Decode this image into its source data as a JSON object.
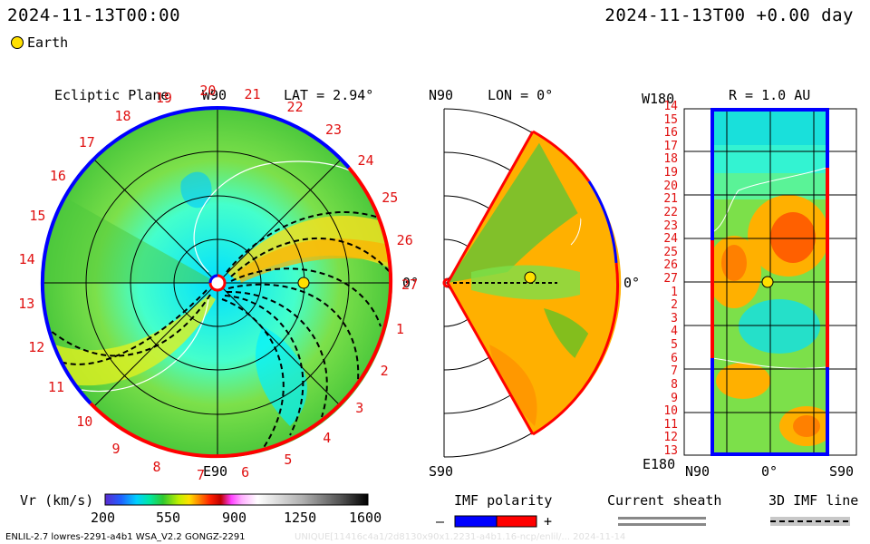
{
  "header": {
    "left_timestamp": "2024-11-13T00:00",
    "right_timestamp": "2024-11-13T00 +0.00 day",
    "legend_label": "Earth"
  },
  "ecliptic": {
    "title": "Ecliptic Plane",
    "top_label": "W90",
    "bottom_label": "E90",
    "right_label": "0°",
    "lat_label": "LAT = 2.94°",
    "ticks": [
      "20",
      "21",
      "22",
      "23",
      "24",
      "25",
      "26",
      "27",
      "1",
      "2",
      "3",
      "4",
      "5",
      "6",
      "7",
      "8",
      "9",
      "10",
      "11",
      "12",
      "13",
      "14",
      "15",
      "16",
      "17",
      "18",
      "19"
    ]
  },
  "meridional": {
    "top_label": "N90",
    "bottom_label": "S90",
    "right_label": "0°",
    "lon_label": "LON = 0°"
  },
  "map": {
    "title": "R = 1.0 AU",
    "top_left_label": "W180",
    "bottom_left_label": "E180",
    "bottom_labels": [
      "N90",
      "0°",
      "S90"
    ],
    "rows": [
      "14",
      "15",
      "16",
      "17",
      "18",
      "19",
      "20",
      "21",
      "22",
      "23",
      "24",
      "25",
      "26",
      "27",
      "1",
      "2",
      "3",
      "4",
      "5",
      "6",
      "7",
      "8",
      "9",
      "10",
      "11",
      "12",
      "13"
    ]
  },
  "colorbar": {
    "label": "Vr (km/s)",
    "ticks": [
      "200",
      "550",
      "900",
      "1250",
      "1600"
    ]
  },
  "imf": {
    "label": "IMF polarity",
    "minus": "–",
    "plus": "+"
  },
  "sheath": {
    "label": "Current sheath"
  },
  "imf3d": {
    "label": "3D IMF line"
  },
  "footer": {
    "left": "ENLIL-2.7 lowres-2291-a4b1 WSA_V2.2 GONGZ-2291",
    "right": "UNIQUE[11416c4a1/2d8130x90x1.2231-a4b1.16-ncp/enlil/... 2024-11-14"
  },
  "colors": {
    "positive_polarity": "#ff0000",
    "negative_polarity": "#0000ff",
    "earth": "#ffe000"
  }
}
